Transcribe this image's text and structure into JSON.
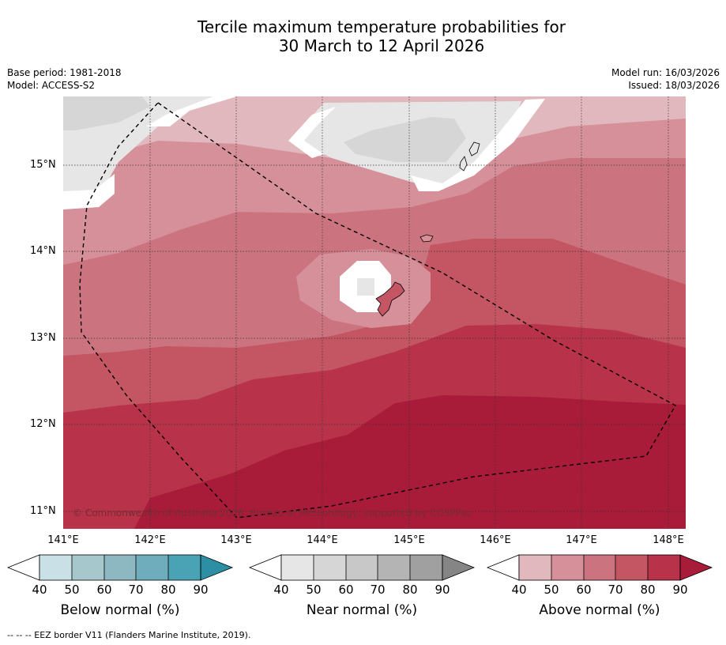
{
  "header": {
    "title_line1": "Tercile maximum temperature probabilities for",
    "title_line2": "30 March to 12 April 2026",
    "base_period": "Base period: 1981-2018",
    "model": "Model: ACCESS-S2",
    "model_run": "Model run: 16/03/2026",
    "issued": "Issued: 18/03/2026"
  },
  "map": {
    "lat_labels": [
      "15°N",
      "14°N",
      "13°N",
      "12°N",
      "11°N"
    ],
    "lon_labels": [
      "141°E",
      "142°E",
      "143°E",
      "144°E",
      "145°E",
      "146°E",
      "147°E",
      "148°E"
    ],
    "copyright": "© Commonwealth of Australia 2026, Bureau of Meteorology, supported by COSPPac"
  },
  "colorbars": [
    {
      "label": "Below normal (%)",
      "ticks": [
        "40",
        "50",
        "60",
        "70",
        "80",
        "90"
      ],
      "colors": [
        "#c8e0e6",
        "#a6c7cc",
        "#8db7c1",
        "#6fadbd",
        "#4aa3b4",
        "#2c8fa3"
      ]
    },
    {
      "label": "Near normal (%)",
      "ticks": [
        "40",
        "50",
        "60",
        "70",
        "80",
        "90"
      ],
      "colors": [
        "#e6e6e6",
        "#d6d6d6",
        "#c8c8c8",
        "#b4b4b4",
        "#a0a0a0",
        "#858585"
      ]
    },
    {
      "label": "Above normal (%)",
      "ticks": [
        "40",
        "50",
        "60",
        "70",
        "80",
        "90"
      ],
      "colors": [
        "#e0b8bd",
        "#d6909a",
        "#cb7480",
        "#c45562",
        "#b83349",
        "#a81c3a"
      ]
    }
  ],
  "footer": {
    "eez_note": "--  --  -- EEZ border V11 (Flanders Marine Institute, 2019)."
  }
}
